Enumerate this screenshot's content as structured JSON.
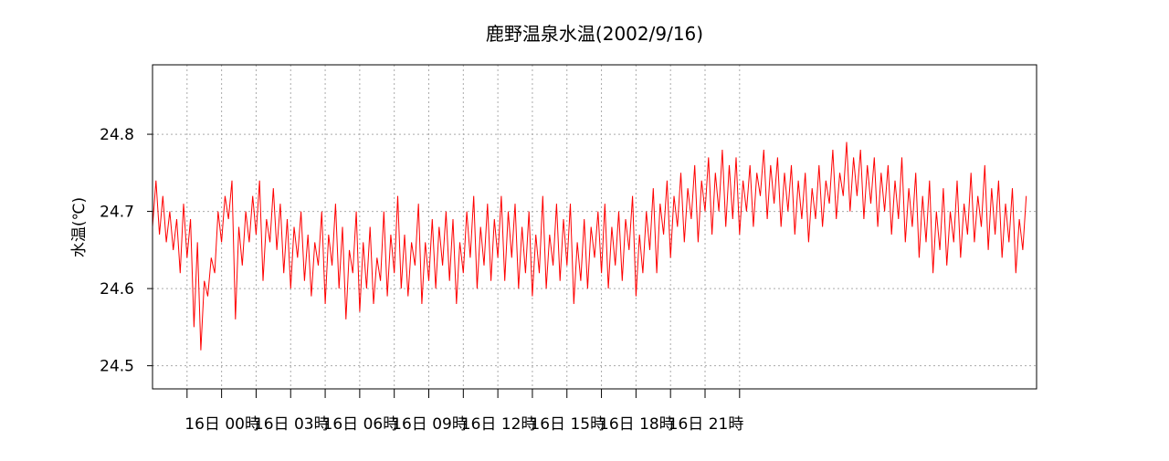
{
  "chart_data": {
    "type": "line",
    "title": "鹿野温泉水温(2002/9/16)",
    "xlabel": "",
    "ylabel": "水温(℃)",
    "ylim": [
      24.47,
      24.89
    ],
    "yticks": [
      24.5,
      24.6,
      24.7,
      24.8
    ],
    "ytick_labels": [
      "24.5",
      "24.6",
      "24.7",
      "24.8"
    ],
    "xticks": [
      {
        "x": 0,
        "label": ""
      },
      {
        "x": 1,
        "label": "16日  00時"
      },
      {
        "x": 2,
        "label": ""
      },
      {
        "x": 3,
        "label": "16日  03時"
      },
      {
        "x": 4,
        "label": ""
      },
      {
        "x": 5,
        "label": "16日  06時"
      },
      {
        "x": 6,
        "label": ""
      },
      {
        "x": 7,
        "label": "16日  09時"
      },
      {
        "x": 8,
        "label": ""
      },
      {
        "x": 9,
        "label": "16日  12時"
      },
      {
        "x": 10,
        "label": ""
      },
      {
        "x": 11,
        "label": "16日  15時"
      },
      {
        "x": 12,
        "label": ""
      },
      {
        "x": 13,
        "label": "16日  18時"
      },
      {
        "x": 14,
        "label": ""
      },
      {
        "x": 15,
        "label": "16日  21時"
      },
      {
        "x": 16,
        "label": ""
      }
    ],
    "xlim": [
      -1,
      24.6
    ],
    "grid": true,
    "series": [
      {
        "color": "#ff0000",
        "x_start": -1,
        "x_step": 0.1,
        "values": [
          24.68,
          24.74,
          24.67,
          24.72,
          24.66,
          24.7,
          24.65,
          24.69,
          24.62,
          24.71,
          24.64,
          24.69,
          24.55,
          24.66,
          24.52,
          24.61,
          24.59,
          24.64,
          24.62,
          24.7,
          24.66,
          24.72,
          24.69,
          24.74,
          24.56,
          24.68,
          24.63,
          24.7,
          24.66,
          24.72,
          24.67,
          24.74,
          24.61,
          24.69,
          24.66,
          24.73,
          24.65,
          24.71,
          24.62,
          24.69,
          24.6,
          24.68,
          24.64,
          24.7,
          24.61,
          24.67,
          24.59,
          24.66,
          24.63,
          24.7,
          24.58,
          24.67,
          24.63,
          24.71,
          24.6,
          24.68,
          24.56,
          24.65,
          24.62,
          24.7,
          24.57,
          24.66,
          24.6,
          24.68,
          24.58,
          24.64,
          24.61,
          24.7,
          24.59,
          24.67,
          24.62,
          24.72,
          24.6,
          24.67,
          24.59,
          24.66,
          24.63,
          24.71,
          24.58,
          24.66,
          24.61,
          24.69,
          24.6,
          24.68,
          24.63,
          24.7,
          24.61,
          24.69,
          24.58,
          24.66,
          24.62,
          24.7,
          24.64,
          24.72,
          24.6,
          24.68,
          24.63,
          24.71,
          24.61,
          24.69,
          24.64,
          24.72,
          24.61,
          24.7,
          24.64,
          24.71,
          24.6,
          24.68,
          24.62,
          24.7,
          24.59,
          24.67,
          24.62,
          24.72,
          24.6,
          24.67,
          24.63,
          24.71,
          24.61,
          24.69,
          24.63,
          24.71,
          24.58,
          24.66,
          24.61,
          24.69,
          24.6,
          24.68,
          24.64,
          24.7,
          24.62,
          24.71,
          24.6,
          24.68,
          24.63,
          24.7,
          24.61,
          24.69,
          24.65,
          24.72,
          24.59,
          24.67,
          24.62,
          24.7,
          24.65,
          24.73,
          24.62,
          24.71,
          24.67,
          24.74,
          24.64,
          24.72,
          24.68,
          24.75,
          24.66,
          24.73,
          24.69,
          24.76,
          24.66,
          24.74,
          24.7,
          24.77,
          24.67,
          24.75,
          24.7,
          24.78,
          24.68,
          24.76,
          24.69,
          24.77,
          24.67,
          24.74,
          24.7,
          24.76,
          24.68,
          24.75,
          24.72,
          24.78,
          24.69,
          24.76,
          24.71,
          24.77,
          24.68,
          24.75,
          24.7,
          24.76,
          24.67,
          24.74,
          24.69,
          24.75,
          24.66,
          24.73,
          24.69,
          24.76,
          24.68,
          24.74,
          24.71,
          24.78,
          24.69,
          24.75,
          24.72,
          24.79,
          24.7,
          24.77,
          24.72,
          24.78,
          24.69,
          24.76,
          24.71,
          24.77,
          24.68,
          24.75,
          24.7,
          24.76,
          24.67,
          24.74,
          24.69,
          24.77,
          24.66,
          24.73,
          24.68,
          24.75,
          24.64,
          24.72,
          24.66,
          24.74,
          24.62,
          24.7,
          24.65,
          24.73,
          24.63,
          24.7,
          24.66,
          24.74,
          24.64,
          24.71,
          24.67,
          24.75,
          24.66,
          24.72,
          24.68,
          24.76,
          24.65,
          24.73,
          24.67,
          24.74,
          24.64,
          24.71,
          24.66,
          24.73,
          24.62,
          24.69,
          24.65,
          24.72
        ]
      }
    ]
  }
}
